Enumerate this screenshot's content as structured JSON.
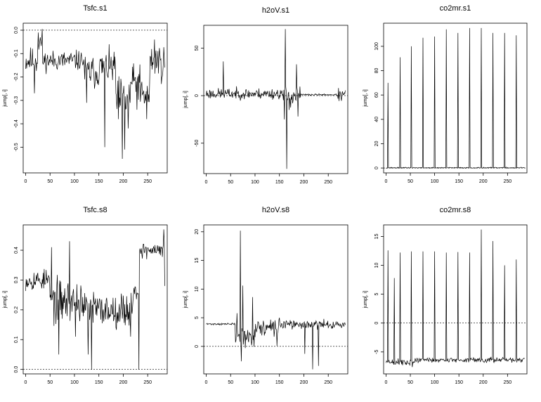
{
  "figure": {
    "ncols": 3,
    "nrows": 2,
    "grid": false
  },
  "chart_data": [
    {
      "type": "line",
      "title": "Tsfc.s1",
      "ylabel": "jump[, i]",
      "xlim": [
        -5,
        290
      ],
      "ylim": [
        -0.61,
        0.03
      ],
      "xticks": [
        0,
        50,
        100,
        150,
        200,
        250
      ],
      "yticks": [
        0.0,
        -0.1,
        -0.2,
        -0.3,
        -0.4,
        -0.5
      ],
      "ytick_labels": [
        "0.0",
        "-0.1",
        "-0.2",
        "-0.3",
        "-0.4",
        "-0.5"
      ],
      "hline": 0,
      "seed": 11,
      "segments": [
        {
          "x0": 0,
          "x1": 25,
          "base": -0.13,
          "noise": 0.04
        },
        {
          "x0": 25,
          "x1": 35,
          "base": -0.05,
          "noise": 0.04
        },
        {
          "x0": 35,
          "x1": 120,
          "base": -0.13,
          "noise": 0.03
        },
        {
          "x0": 120,
          "x1": 150,
          "base": -0.18,
          "noise": 0.05
        },
        {
          "x0": 150,
          "x1": 185,
          "base": -0.16,
          "noise": 0.05
        },
        {
          "x0": 185,
          "x1": 215,
          "base": -0.3,
          "noise": 0.07
        },
        {
          "x0": 215,
          "x1": 235,
          "base": -0.22,
          "noise": 0.05
        },
        {
          "x0": 235,
          "x1": 255,
          "base": -0.28,
          "noise": 0.06
        },
        {
          "x0": 255,
          "x1": 286,
          "base": -0.13,
          "noise": 0.05
        }
      ],
      "spikes": [
        {
          "x": 18,
          "y": -0.27
        },
        {
          "x": 26,
          "y": -0.01
        },
        {
          "x": 125,
          "y": -0.31
        },
        {
          "x": 162,
          "y": -0.5
        },
        {
          "x": 190,
          "y": -0.38
        },
        {
          "x": 198,
          "y": -0.55
        },
        {
          "x": 203,
          "y": -0.51
        },
        {
          "x": 210,
          "y": -0.42
        },
        {
          "x": 228,
          "y": -0.34
        },
        {
          "x": 248,
          "y": -0.38
        },
        {
          "x": 264,
          "y": -0.04
        },
        {
          "x": 278,
          "y": -0.23
        }
      ]
    },
    {
      "type": "line",
      "title": "h2oV.s1",
      "ylabel": "jump[, i]",
      "xlim": [
        -5,
        290
      ],
      "ylim": [
        -82,
        74
      ],
      "xticks": [
        0,
        50,
        100,
        150,
        200,
        250
      ],
      "yticks": [
        50,
        0,
        -50
      ],
      "ytick_labels": [
        "50",
        "0",
        "-50"
      ],
      "hline": 0,
      "seed": 23,
      "segments": [
        {
          "x0": 0,
          "x1": 155,
          "base": 2,
          "noise": 4
        },
        {
          "x0": 155,
          "x1": 195,
          "base": 0,
          "noise": 8
        },
        {
          "x0": 195,
          "x1": 270,
          "base": 1,
          "noise": 0.6
        },
        {
          "x0": 270,
          "x1": 286,
          "base": 0,
          "noise": 5
        }
      ],
      "spikes": [
        {
          "x": 35,
          "y": 36
        },
        {
          "x": 160,
          "y": -25
        },
        {
          "x": 162,
          "y": 70
        },
        {
          "x": 165,
          "y": -77
        },
        {
          "x": 170,
          "y": -15
        },
        {
          "x": 185,
          "y": 33
        },
        {
          "x": 188,
          "y": -22
        }
      ]
    },
    {
      "type": "line",
      "title": "co2mr.s1",
      "ylabel": "jump[, i]",
      "xlim": [
        -5,
        290
      ],
      "ylim": [
        -4,
        119
      ],
      "xticks": [
        0,
        50,
        100,
        150,
        200,
        250
      ],
      "yticks": [
        0,
        20,
        40,
        60,
        80,
        100
      ],
      "ytick_labels": [
        "0",
        "20",
        "40",
        "60",
        "80",
        "100"
      ],
      "hline": 0,
      "seed": 37,
      "segments": [
        {
          "x0": 0,
          "x1": 286,
          "base": 0.2,
          "noise": 0.3
        }
      ],
      "spikes": [
        {
          "x": 4,
          "y": 70
        },
        {
          "x": 29,
          "y": 91
        },
        {
          "x": 52,
          "y": 100
        },
        {
          "x": 76,
          "y": 107
        },
        {
          "x": 100,
          "y": 108
        },
        {
          "x": 124,
          "y": 114
        },
        {
          "x": 148,
          "y": 111
        },
        {
          "x": 172,
          "y": 115
        },
        {
          "x": 196,
          "y": 115
        },
        {
          "x": 220,
          "y": 111
        },
        {
          "x": 244,
          "y": 111
        },
        {
          "x": 268,
          "y": 109
        }
      ]
    },
    {
      "type": "line",
      "title": "Tsfc.s8",
      "ylabel": "jump[, i]",
      "xlim": [
        -5,
        290
      ],
      "ylim": [
        -0.015,
        0.485
      ],
      "xticks": [
        0,
        50,
        100,
        150,
        200,
        250
      ],
      "yticks": [
        0.0,
        0.1,
        0.2,
        0.3,
        0.4
      ],
      "ytick_labels": [
        "0.0",
        "0.1",
        "0.2",
        "0.3",
        "0.4"
      ],
      "hline": 0,
      "seed": 53,
      "segments": [
        {
          "x0": 0,
          "x1": 50,
          "base": 0.3,
          "noise": 0.025
        },
        {
          "x0": 50,
          "x1": 120,
          "base": 0.23,
          "noise": 0.05
        },
        {
          "x0": 120,
          "x1": 220,
          "base": 0.2,
          "noise": 0.04
        },
        {
          "x0": 220,
          "x1": 233,
          "base": 0.26,
          "noise": 0.02
        },
        {
          "x0": 233,
          "x1": 286,
          "base": 0.4,
          "noise": 0.02
        }
      ],
      "spikes": [
        {
          "x": 53,
          "y": 0.41
        },
        {
          "x": 68,
          "y": 0.05
        },
        {
          "x": 90,
          "y": 0.43
        },
        {
          "x": 102,
          "y": 0.11
        },
        {
          "x": 128,
          "y": 0.05
        },
        {
          "x": 135,
          "y": 0.0
        },
        {
          "x": 139,
          "y": 0.26
        },
        {
          "x": 215,
          "y": 0.11
        },
        {
          "x": 232,
          "y": 0.0
        },
        {
          "x": 283,
          "y": 0.47
        },
        {
          "x": 285,
          "y": 0.28
        }
      ]
    },
    {
      "type": "line",
      "title": "h2oV.s8",
      "ylabel": "jump[, i]",
      "xlim": [
        -5,
        290
      ],
      "ylim": [
        -4.8,
        21.2
      ],
      "xticks": [
        0,
        50,
        100,
        150,
        200,
        250
      ],
      "yticks": [
        0,
        5,
        10,
        15,
        20
      ],
      "ytick_labels": [
        "0",
        "5",
        "10",
        "15",
        "20"
      ],
      "hline": 0,
      "seed": 71,
      "segments": [
        {
          "x0": 0,
          "x1": 60,
          "base": 3.9,
          "noise": 0.12
        },
        {
          "x0": 60,
          "x1": 100,
          "base": 1.8,
          "noise": 1.3
        },
        {
          "x0": 100,
          "x1": 150,
          "base": 3.2,
          "noise": 1.0
        },
        {
          "x0": 150,
          "x1": 286,
          "base": 3.8,
          "noise": 0.5
        }
      ],
      "spikes": [
        {
          "x": 63,
          "y": 5.8
        },
        {
          "x": 70,
          "y": 20.2
        },
        {
          "x": 72,
          "y": -2.6
        },
        {
          "x": 75,
          "y": 10.6
        },
        {
          "x": 80,
          "y": -0.3
        },
        {
          "x": 95,
          "y": 8.6
        },
        {
          "x": 145,
          "y": 0.1
        },
        {
          "x": 150,
          "y": 5.0
        },
        {
          "x": 202,
          "y": -1.3
        },
        {
          "x": 218,
          "y": -4.0
        },
        {
          "x": 230,
          "y": -3.4
        }
      ]
    },
    {
      "type": "line",
      "title": "co2mr.s8",
      "ylabel": "jump[, i]",
      "xlim": [
        -5,
        290
      ],
      "ylim": [
        -8.8,
        17.0
      ],
      "xticks": [
        0,
        50,
        100,
        150,
        200,
        250
      ],
      "yticks": [
        -5,
        0,
        5,
        10,
        15
      ],
      "ytick_labels": [
        "-5",
        "0",
        "5",
        "10",
        "15"
      ],
      "hline": 0,
      "seed": 89,
      "segments": [
        {
          "x0": 0,
          "x1": 60,
          "base": -6.8,
          "noise": 0.55
        },
        {
          "x0": 60,
          "x1": 286,
          "base": -6.4,
          "noise": 0.3
        }
      ],
      "spikes": [
        {
          "x": 4,
          "y": 12.6
        },
        {
          "x": 17,
          "y": 7.8
        },
        {
          "x": 29,
          "y": 12.2
        },
        {
          "x": 52,
          "y": 12.4
        },
        {
          "x": 76,
          "y": 12.4
        },
        {
          "x": 100,
          "y": 12.4
        },
        {
          "x": 124,
          "y": 12.2
        },
        {
          "x": 148,
          "y": 12.3
        },
        {
          "x": 172,
          "y": 12.2
        },
        {
          "x": 196,
          "y": 16.2
        },
        {
          "x": 220,
          "y": 14.2
        },
        {
          "x": 244,
          "y": 10.0
        },
        {
          "x": 268,
          "y": 11.0
        }
      ]
    }
  ]
}
